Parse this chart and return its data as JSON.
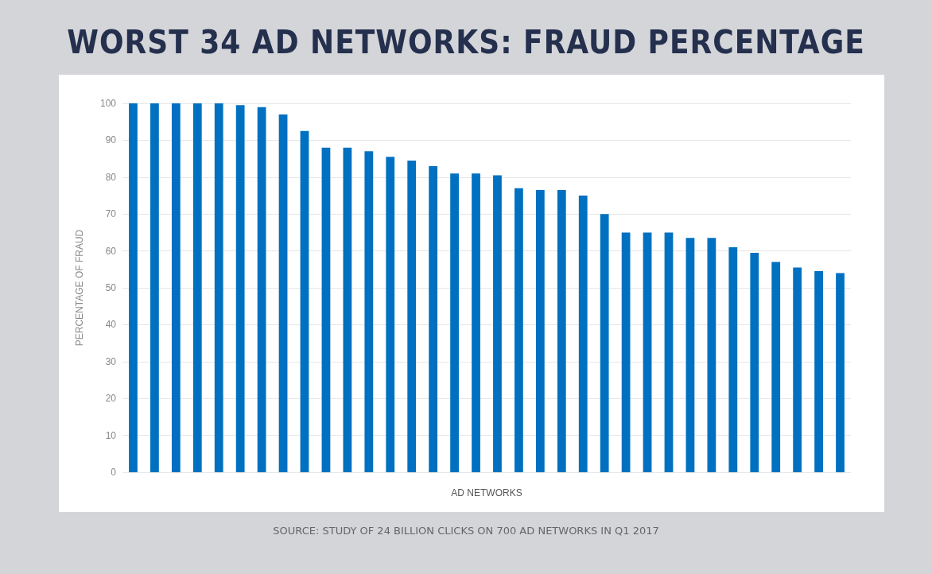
{
  "chart_data": {
    "type": "bar",
    "title": "WORST 34 AD NETWORKS: FRAUD PERCENTAGE",
    "xlabel": "AD NETWORKS",
    "ylabel": "PERCENTAGE OF FRAUD",
    "annotations": [
      "SOURCE: STUDY OF 24 BILLION CLICKS ON 700 AD NETWORKS IN Q1 2017"
    ],
    "categories": [
      null,
      null,
      null,
      null,
      null,
      null,
      null,
      null,
      null,
      null,
      null,
      null,
      null,
      null,
      null,
      null,
      null,
      null,
      null,
      null,
      null,
      null,
      null,
      null,
      null,
      null,
      null,
      null,
      null,
      null,
      null,
      null,
      null,
      null
    ],
    "values": [
      100,
      100,
      100,
      100,
      100,
      99.5,
      99,
      97,
      92.5,
      88,
      88,
      87,
      85.5,
      84.5,
      83,
      81,
      81,
      80.5,
      77,
      76.5,
      76.5,
      75,
      70,
      65,
      65,
      65,
      63.5,
      63.5,
      61,
      59.5,
      57,
      55.5,
      54.5,
      54
    ],
    "color": "#0070c0",
    "ylim": [
      0,
      100
    ],
    "yticks": [
      0,
      10,
      20,
      30,
      40,
      50,
      60,
      70,
      80,
      90,
      100
    ],
    "grid": "y"
  }
}
